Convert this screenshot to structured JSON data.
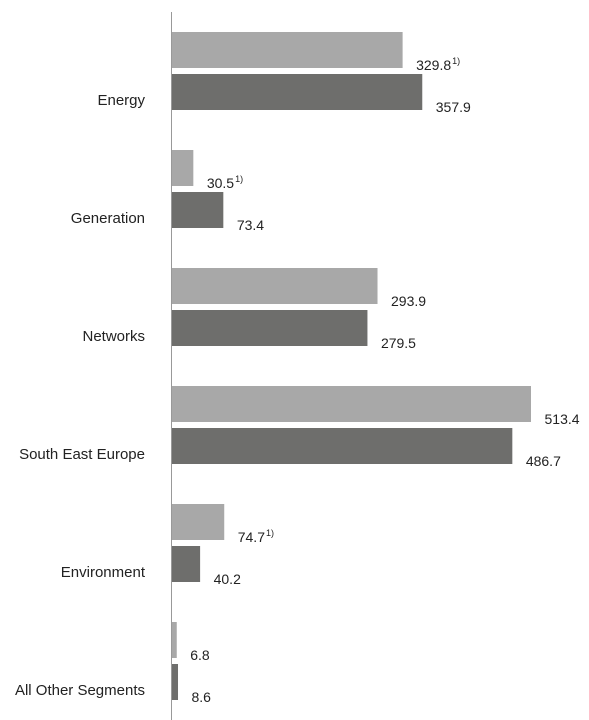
{
  "chart_data": {
    "type": "bar",
    "orientation": "horizontal",
    "categories": [
      "Energy",
      "Generation",
      "Networks",
      "South East Europe",
      "Environment",
      "All Other Segments"
    ],
    "series": [
      {
        "values": [
          329.8,
          30.5,
          293.9,
          513.4,
          74.7,
          6.8
        ],
        "labels": [
          "329.8",
          "30.5",
          "293.9",
          "513.4",
          "74.7",
          "6.8"
        ],
        "footnotes": [
          "1)",
          "1)",
          "",
          "",
          "1)",
          ""
        ],
        "color": "#a8a8a8"
      },
      {
        "values": [
          357.9,
          73.4,
          279.5,
          486.7,
          40.2,
          8.6
        ],
        "labels": [
          "357.9",
          "73.4",
          "279.5",
          "486.7",
          "40.2",
          "8.6"
        ],
        "footnotes": [
          "",
          "",
          "",
          "",
          "",
          ""
        ],
        "color": "#6e6e6c"
      }
    ],
    "xlim": [
      0,
      513.4
    ],
    "grid": false,
    "legend": "none",
    "axis_color": "#999999"
  }
}
